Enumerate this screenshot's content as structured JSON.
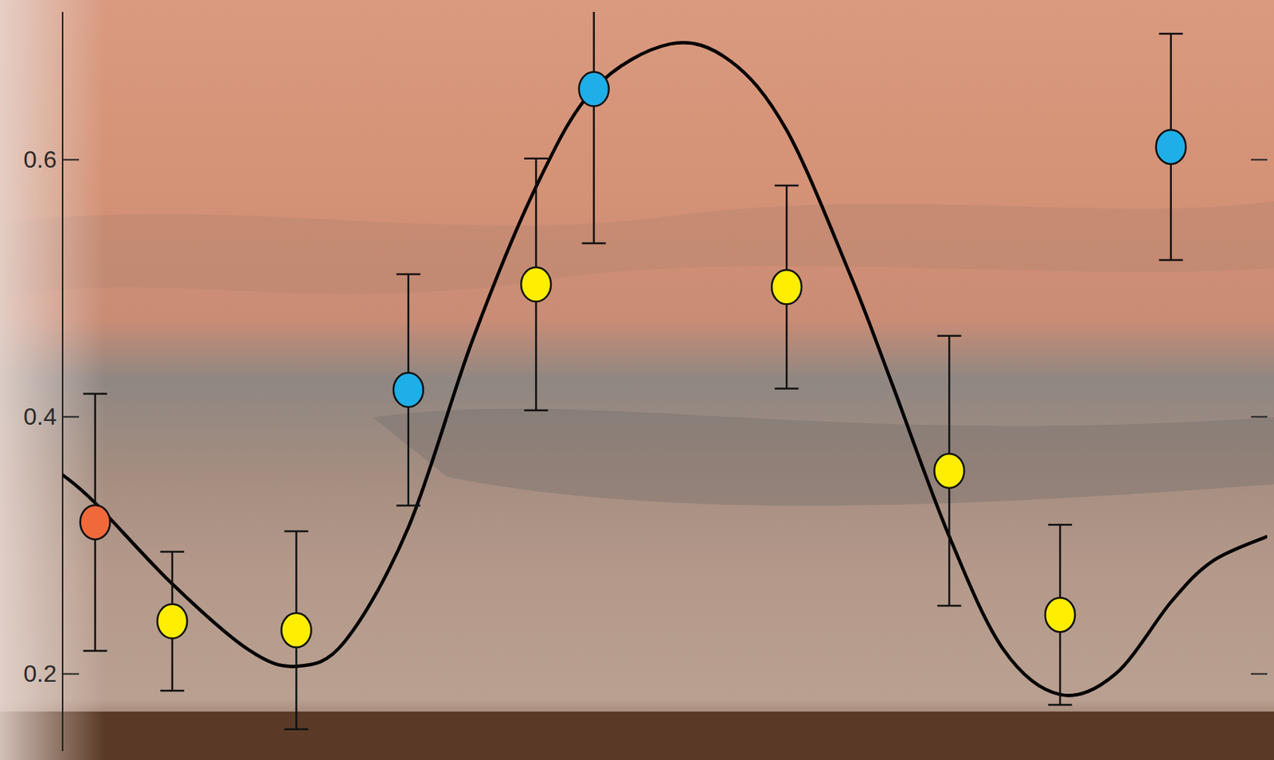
{
  "chart_data": {
    "type": "scatter",
    "ylim": [
      0.14,
      0.715
    ],
    "yticks": [
      0.2,
      0.4,
      0.6
    ],
    "xlim": [
      0,
      100
    ],
    "tick_labels": "y",
    "grid": false,
    "series": [
      {
        "type": "line",
        "color": "#000000",
        "line_style": "solid",
        "x": [
          0,
          2.7,
          9.1,
          15.4,
          19.4,
          23.4,
          28.7,
          34.0,
          39.3,
          44.1,
          50.4,
          55.4,
          60.1,
          65.4,
          68.8,
          73.6,
          78.1,
          82.8,
          87.4,
          92.1,
          95.5,
          100
        ],
        "values": [
          0.355,
          0.333,
          0.27,
          0.219,
          0.206,
          0.225,
          0.314,
          0.459,
          0.579,
          0.655,
          0.69,
          0.677,
          0.623,
          0.51,
          0.427,
          0.307,
          0.219,
          0.184,
          0.2,
          0.257,
          0.288,
          0.307
        ]
      },
      {
        "type": "scatter",
        "marker": "circle",
        "x": [
          2.7,
          9.1,
          19.4,
          28.7,
          39.3,
          44.1,
          60.1,
          73.6,
          82.8,
          92.0
        ],
        "values": [
          0.318,
          0.241,
          0.234,
          0.421,
          0.503,
          0.655,
          0.501,
          0.358,
          0.246,
          0.61
        ],
        "errors": [
          0.1,
          0.054,
          0.077,
          0.09,
          0.098,
          0.12,
          0.079,
          0.105,
          0.07,
          0.088
        ],
        "colors": [
          "#f0693a",
          "#ffee00",
          "#ffee00",
          "#1eaee8",
          "#ffee00",
          "#1eaee8",
          "#ffee00",
          "#ffee00",
          "#ffee00",
          "#1eaee8"
        ]
      }
    ]
  }
}
